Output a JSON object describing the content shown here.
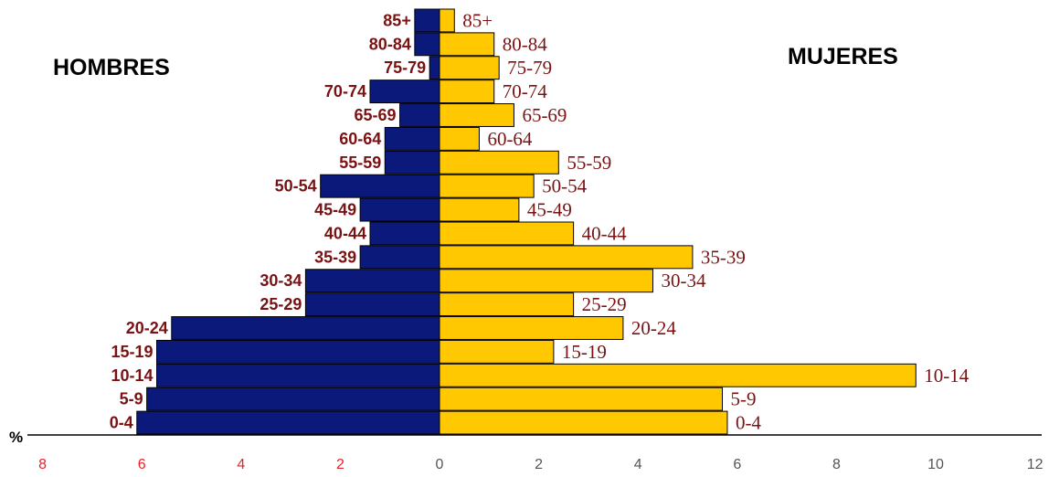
{
  "chart_data": {
    "type": "bar",
    "orientation": "horizontal",
    "layout": "population-pyramid",
    "unit_label": "%",
    "categories": [
      "0-4",
      "5-9",
      "10-14",
      "15-19",
      "20-24",
      "25-29",
      "30-34",
      "35-39",
      "40-44",
      "45-49",
      "50-54",
      "55-59",
      "60-64",
      "65-69",
      "70-74",
      "75-79",
      "80-84",
      "85+"
    ],
    "series": [
      {
        "name": "HOMBRES",
        "color": "#0b1a7a",
        "label_color": "#7a1214",
        "values": [
          6.1,
          5.9,
          5.7,
          5.7,
          5.4,
          2.7,
          2.7,
          1.6,
          1.4,
          1.6,
          2.4,
          1.1,
          1.1,
          0.8,
          1.4,
          0.2,
          0.5,
          0.5
        ]
      },
      {
        "name": "MUJERES",
        "color": "#ffc800",
        "label_color": "#7a1214",
        "values": [
          5.8,
          5.7,
          9.6,
          2.3,
          3.7,
          2.7,
          4.3,
          5.1,
          2.7,
          1.6,
          1.9,
          2.4,
          0.8,
          1.5,
          1.1,
          1.2,
          1.1,
          0.3
        ]
      }
    ],
    "xlim": [
      -8,
      12
    ],
    "xticks": [
      -8,
      -6,
      -4,
      -2,
      0,
      2,
      4,
      6,
      8,
      10,
      12
    ],
    "xtick_labels": [
      "8",
      "6",
      "4",
      "2",
      "0",
      "2",
      "4",
      "6",
      "8",
      "10",
      "12"
    ],
    "negative_tick_color": "#e8222a",
    "positive_tick_color": "#555555",
    "grid": false,
    "legend": "none"
  }
}
